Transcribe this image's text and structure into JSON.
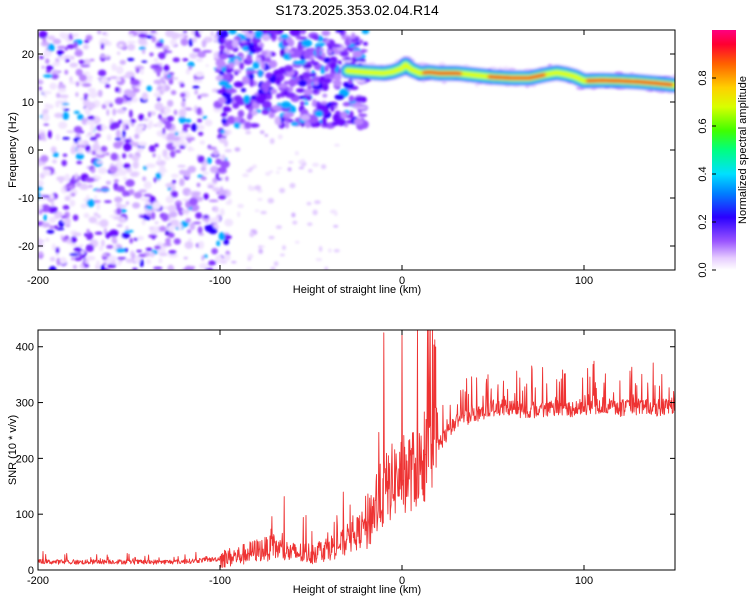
{
  "chart_data": [
    {
      "type": "heatmap",
      "title": "S173.2025.353.02.04.R14",
      "xlabel": "Height of straight line (km)",
      "ylabel": "Frequency (Hz)",
      "xlim": [
        -200,
        150
      ],
      "ylim": [
        -25,
        25
      ],
      "x_ticks": [
        -200,
        -100,
        0,
        100
      ],
      "y_ticks": [
        -20,
        -10,
        0,
        10,
        20
      ],
      "colorbar": {
        "label": "Normalized spectral amplitude",
        "range": [
          0.0,
          1.0
        ],
        "ticks": [
          "0.0",
          "0.2",
          "0.4",
          "0.6",
          "0.8"
        ]
      },
      "ridge_line": {
        "x": [
          -30,
          -20,
          -10,
          -5,
          0,
          2,
          5,
          10,
          15,
          20,
          30,
          40,
          50,
          60,
          70,
          80,
          85,
          90,
          95,
          100,
          110,
          120,
          130,
          140,
          150
        ],
        "y": [
          16.5,
          16.2,
          16.0,
          16.3,
          17.0,
          17.8,
          16.8,
          16.0,
          16.2,
          16.0,
          16.0,
          15.6,
          15.2,
          15.0,
          15.0,
          15.8,
          16.1,
          15.8,
          15.3,
          14.4,
          14.5,
          14.4,
          14.2,
          13.9,
          13.5
        ]
      }
    },
    {
      "type": "line",
      "xlabel": "Height of straight line (km)",
      "ylabel": "SNR (10 * v/v)",
      "xlim": [
        -200,
        150
      ],
      "ylim": [
        0,
        430
      ],
      "x_ticks": [
        -200,
        -100,
        0,
        100
      ],
      "y_ticks": [
        0,
        100,
        200,
        300,
        400
      ],
      "series": [
        {
          "name": "SNR",
          "color": "#ee3333",
          "x": [
            -200,
            -180,
            -160,
            -140,
            -120,
            -100,
            -90,
            -80,
            -70,
            -60,
            -50,
            -40,
            -30,
            -20,
            -15,
            -10,
            -5,
            0,
            10,
            20,
            30,
            40,
            50,
            60,
            70,
            80,
            90,
            100,
            110,
            120,
            130,
            140,
            150
          ],
          "values": [
            15,
            14,
            15,
            14,
            15,
            20,
            25,
            35,
            40,
            30,
            30,
            40,
            50,
            80,
            110,
            140,
            160,
            170,
            185,
            225,
            265,
            280,
            290,
            290,
            285,
            290,
            288,
            292,
            295,
            290,
            293,
            290,
            295
          ],
          "annotations_peak": {
            "x": -10,
            "y": 425
          }
        }
      ]
    }
  ]
}
